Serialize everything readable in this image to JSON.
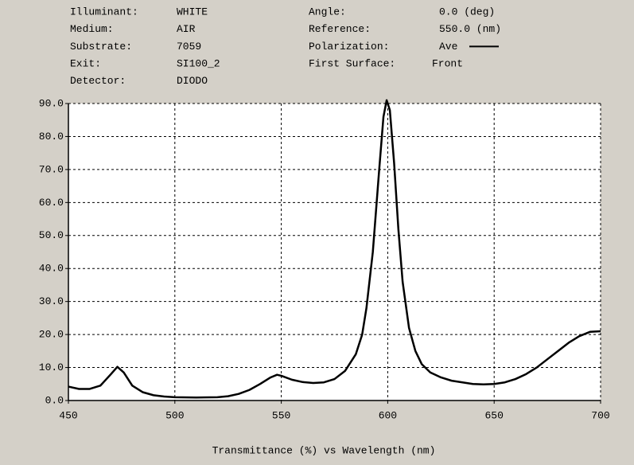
{
  "chart_data": {
    "type": "line",
    "info_left": [
      [
        "Illuminant:",
        "WHITE"
      ],
      [
        "Medium:",
        "AIR"
      ],
      [
        "Substrate:",
        "7059"
      ],
      [
        "Exit:",
        "SI100_2"
      ],
      [
        "Detector:",
        "DIODO"
      ]
    ],
    "info_right": [
      [
        "Angle:",
        "0.0 (deg)"
      ],
      [
        "Reference:",
        "550.0 (nm)"
      ],
      [
        "First Surface:",
        "Front"
      ]
    ],
    "polarization_label": "Polarization:",
    "xlabel": "Transmittance (%)  vs  Wavelength (nm)",
    "x": [
      450,
      455,
      460,
      465,
      470,
      473,
      476,
      480,
      485,
      490,
      495,
      500,
      510,
      520,
      525,
      530,
      535,
      540,
      545,
      548,
      550,
      555,
      560,
      565,
      570,
      575,
      580,
      585,
      588,
      590,
      593,
      596,
      598,
      599.5,
      601,
      603,
      605,
      607,
      610,
      613,
      616,
      620,
      625,
      630,
      640,
      645,
      650,
      655,
      660,
      665,
      670,
      675,
      680,
      685,
      690,
      695,
      700
    ],
    "series": [
      {
        "name": "Ave",
        "color": "#000000",
        "values": [
          4.2,
          3.5,
          3.5,
          4.5,
          8,
          10.2,
          8.5,
          4.5,
          2.5,
          1.6,
          1.2,
          1.0,
          0.9,
          1.0,
          1.3,
          2,
          3.2,
          5,
          7,
          7.8,
          7.5,
          6.3,
          5.6,
          5.3,
          5.5,
          6.5,
          9,
          14,
          20,
          28,
          45,
          70,
          86,
          91,
          88,
          72,
          52,
          36,
          22,
          15,
          11,
          8.5,
          7,
          6,
          5,
          4.9,
          5,
          5.5,
          6.5,
          8,
          10,
          12.5,
          15,
          17.5,
          19.5,
          20.8,
          21
        ]
      }
    ],
    "xlim": [
      450,
      700
    ],
    "ylim": [
      0,
      90
    ],
    "xticks": [
      450,
      500,
      550,
      600,
      650,
      700
    ],
    "yticks": [
      {
        "value": 0,
        "label": "0.0"
      },
      {
        "value": 10,
        "label": "10.0"
      },
      {
        "value": 20,
        "label": "20.0"
      },
      {
        "value": 30,
        "label": "30.0"
      },
      {
        "value": 40,
        "label": "40.0"
      },
      {
        "value": 50,
        "label": "50.0"
      },
      {
        "value": 60,
        "label": "60.0"
      },
      {
        "value": 70,
        "label": "70.0"
      },
      {
        "value": 80,
        "label": "80.0"
      },
      {
        "value": 90,
        "label": "90.0"
      }
    ],
    "grid": true
  }
}
